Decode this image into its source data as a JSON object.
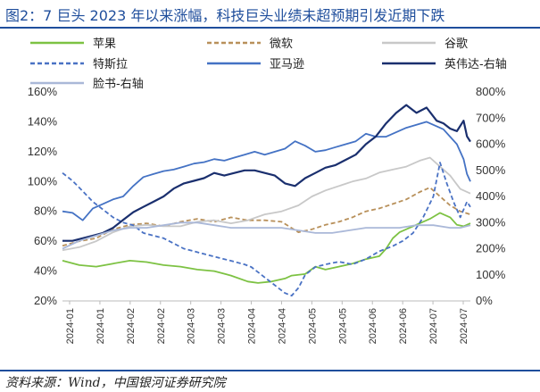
{
  "header": {
    "title": "图2：7 巨头 2023 年以来涨幅，科技巨头业绩未超预期引发近期下跌"
  },
  "footer": {
    "source": "资料来源：Wind，中国银河证券研究院"
  },
  "chart_data": {
    "type": "line",
    "title": "",
    "xlabel": "",
    "ylabel_left": "",
    "ylabel_right": "",
    "ylim_left": [
      0.2,
      1.6
    ],
    "ylim_right": [
      0,
      8
    ],
    "y_ticks_left": [
      "20%",
      "40%",
      "60%",
      "80%",
      "100%",
      "120%",
      "140%",
      "160%"
    ],
    "y_ticks_right": [
      "0%",
      "100%",
      "200%",
      "300%",
      "400%",
      "500%",
      "600%",
      "700%",
      "800%"
    ],
    "x_ticks": [
      "2024-01",
      "2024-01",
      "2024-02",
      "2024-02",
      "2024-03",
      "2024-03",
      "2024-04",
      "2024-04",
      "2024-05",
      "2024-05",
      "2024-06",
      "2024-06",
      "2024-07",
      "2024-07"
    ],
    "legend_position": "top",
    "grid": false,
    "series": [
      {
        "name": "苹果",
        "axis": "left",
        "color": "#7dc243",
        "dash": "solid",
        "points": [
          [
            0,
            0.47
          ],
          [
            5,
            0.44
          ],
          [
            10,
            0.43
          ],
          [
            15,
            0.45
          ],
          [
            20,
            0.47
          ],
          [
            25,
            0.46
          ],
          [
            30,
            0.44
          ],
          [
            35,
            0.43
          ],
          [
            40,
            0.41
          ],
          [
            45,
            0.4
          ],
          [
            50,
            0.37
          ],
          [
            55,
            0.33
          ],
          [
            58,
            0.32
          ],
          [
            62,
            0.33
          ],
          [
            66,
            0.35
          ],
          [
            68,
            0.37
          ],
          [
            72,
            0.38
          ],
          [
            75,
            0.43
          ],
          [
            78,
            0.41
          ],
          [
            82,
            0.43
          ],
          [
            86,
            0.45
          ],
          [
            90,
            0.48
          ],
          [
            94,
            0.5
          ],
          [
            96,
            0.55
          ],
          [
            98,
            0.62
          ],
          [
            100,
            0.66
          ],
          [
            103,
            0.69
          ],
          [
            106,
            0.72
          ],
          [
            109,
            0.75
          ],
          [
            112,
            0.79
          ],
          [
            115,
            0.76
          ],
          [
            117,
            0.71
          ],
          [
            119,
            0.7
          ],
          [
            121,
            0.72
          ]
        ]
      },
      {
        "name": "微软",
        "axis": "left",
        "color": "#b8905a",
        "dash": "dash",
        "points": [
          [
            0,
            0.57
          ],
          [
            5,
            0.6
          ],
          [
            10,
            0.62
          ],
          [
            15,
            0.68
          ],
          [
            20,
            0.71
          ],
          [
            25,
            0.72
          ],
          [
            30,
            0.7
          ],
          [
            35,
            0.73
          ],
          [
            40,
            0.75
          ],
          [
            45,
            0.73
          ],
          [
            50,
            0.76
          ],
          [
            55,
            0.74
          ],
          [
            60,
            0.74
          ],
          [
            65,
            0.73
          ],
          [
            70,
            0.66
          ],
          [
            74,
            0.68
          ],
          [
            78,
            0.71
          ],
          [
            82,
            0.73
          ],
          [
            86,
            0.76
          ],
          [
            90,
            0.8
          ],
          [
            94,
            0.82
          ],
          [
            98,
            0.85
          ],
          [
            102,
            0.88
          ],
          [
            106,
            0.93
          ],
          [
            109,
            0.96
          ],
          [
            112,
            0.9
          ],
          [
            115,
            0.84
          ],
          [
            118,
            0.8
          ],
          [
            121,
            0.78
          ]
        ]
      },
      {
        "name": "谷歌",
        "axis": "left",
        "color": "#c8c8c8",
        "dash": "solid",
        "points": [
          [
            0,
            0.54
          ],
          [
            5,
            0.56
          ],
          [
            10,
            0.6
          ],
          [
            15,
            0.66
          ],
          [
            20,
            0.7
          ],
          [
            25,
            0.71
          ],
          [
            30,
            0.7
          ],
          [
            35,
            0.7
          ],
          [
            40,
            0.73
          ],
          [
            45,
            0.74
          ],
          [
            50,
            0.72
          ],
          [
            55,
            0.74
          ],
          [
            60,
            0.78
          ],
          [
            65,
            0.8
          ],
          [
            70,
            0.84
          ],
          [
            74,
            0.9
          ],
          [
            78,
            0.94
          ],
          [
            82,
            0.97
          ],
          [
            86,
            1.0
          ],
          [
            90,
            1.02
          ],
          [
            94,
            1.06
          ],
          [
            98,
            1.08
          ],
          [
            102,
            1.1
          ],
          [
            106,
            1.14
          ],
          [
            109,
            1.16
          ],
          [
            112,
            1.1
          ],
          [
            115,
            1.04
          ],
          [
            118,
            0.95
          ],
          [
            121,
            0.92
          ]
        ]
      },
      {
        "name": "特斯拉",
        "axis": "right",
        "color": "#4a72c4",
        "dash": "dash",
        "points": [
          [
            0,
            4.9
          ],
          [
            3,
            4.6
          ],
          [
            6,
            4.2
          ],
          [
            9,
            3.8
          ],
          [
            12,
            3.5
          ],
          [
            15,
            3.2
          ],
          [
            18,
            3.0
          ],
          [
            21,
            2.9
          ],
          [
            24,
            2.6
          ],
          [
            27,
            2.5
          ],
          [
            30,
            2.4
          ],
          [
            33,
            2.2
          ],
          [
            36,
            2.0
          ],
          [
            39,
            1.9
          ],
          [
            42,
            1.8
          ],
          [
            45,
            1.7
          ],
          [
            48,
            1.6
          ],
          [
            51,
            1.5
          ],
          [
            54,
            1.4
          ],
          [
            56,
            1.3
          ],
          [
            58,
            1.1
          ],
          [
            60,
            0.9
          ],
          [
            62,
            0.7
          ],
          [
            64,
            0.5
          ],
          [
            66,
            0.3
          ],
          [
            68,
            0.2
          ],
          [
            70,
            0.5
          ],
          [
            72,
            1.0
          ],
          [
            75,
            1.3
          ],
          [
            78,
            1.4
          ],
          [
            82,
            1.5
          ],
          [
            86,
            1.4
          ],
          [
            90,
            1.6
          ],
          [
            94,
            1.9
          ],
          [
            98,
            2.1
          ],
          [
            101,
            2.3
          ],
          [
            104,
            2.6
          ],
          [
            107,
            3.2
          ],
          [
            110,
            4.0
          ],
          [
            112,
            5.3
          ],
          [
            114,
            4.5
          ],
          [
            116,
            3.8
          ],
          [
            118,
            3.2
          ],
          [
            120,
            3.8
          ],
          [
            121,
            3.6
          ]
        ]
      },
      {
        "name": "亚马逊",
        "axis": "left",
        "color": "#4472c4",
        "dash": "solid",
        "points": [
          [
            0,
            0.8
          ],
          [
            3,
            0.79
          ],
          [
            6,
            0.74
          ],
          [
            9,
            0.82
          ],
          [
            12,
            0.85
          ],
          [
            15,
            0.88
          ],
          [
            18,
            0.9
          ],
          [
            21,
            0.97
          ],
          [
            24,
            1.03
          ],
          [
            27,
            1.05
          ],
          [
            30,
            1.07
          ],
          [
            33,
            1.08
          ],
          [
            36,
            1.1
          ],
          [
            39,
            1.12
          ],
          [
            42,
            1.13
          ],
          [
            45,
            1.15
          ],
          [
            48,
            1.14
          ],
          [
            51,
            1.16
          ],
          [
            54,
            1.18
          ],
          [
            57,
            1.2
          ],
          [
            60,
            1.18
          ],
          [
            63,
            1.2
          ],
          [
            66,
            1.22
          ],
          [
            69,
            1.27
          ],
          [
            72,
            1.24
          ],
          [
            75,
            1.2
          ],
          [
            78,
            1.21
          ],
          [
            81,
            1.23
          ],
          [
            84,
            1.25
          ],
          [
            87,
            1.27
          ],
          [
            90,
            1.32
          ],
          [
            93,
            1.3
          ],
          [
            96,
            1.3
          ],
          [
            99,
            1.33
          ],
          [
            102,
            1.36
          ],
          [
            105,
            1.38
          ],
          [
            108,
            1.4
          ],
          [
            111,
            1.37
          ],
          [
            113,
            1.35
          ],
          [
            115,
            1.3
          ],
          [
            117,
            1.25
          ],
          [
            119,
            1.15
          ],
          [
            120,
            1.05
          ],
          [
            121,
            1.0
          ]
        ]
      },
      {
        "name": "英伟达-右轴",
        "axis": "right",
        "color": "#1a2f6e",
        "dash": "solid",
        "points": [
          [
            0,
            2.3
          ],
          [
            3,
            2.3
          ],
          [
            6,
            2.4
          ],
          [
            9,
            2.5
          ],
          [
            12,
            2.6
          ],
          [
            15,
            2.8
          ],
          [
            18,
            3.1
          ],
          [
            21,
            3.4
          ],
          [
            24,
            3.6
          ],
          [
            27,
            3.8
          ],
          [
            30,
            4.0
          ],
          [
            33,
            4.3
          ],
          [
            36,
            4.5
          ],
          [
            39,
            4.6
          ],
          [
            42,
            4.7
          ],
          [
            45,
            4.9
          ],
          [
            48,
            4.8
          ],
          [
            51,
            4.9
          ],
          [
            54,
            5.0
          ],
          [
            57,
            5.0
          ],
          [
            60,
            4.9
          ],
          [
            63,
            4.8
          ],
          [
            66,
            4.5
          ],
          [
            69,
            4.4
          ],
          [
            72,
            4.7
          ],
          [
            75,
            4.9
          ],
          [
            78,
            5.1
          ],
          [
            81,
            5.2
          ],
          [
            84,
            5.4
          ],
          [
            87,
            5.6
          ],
          [
            90,
            6.0
          ],
          [
            93,
            6.3
          ],
          [
            96,
            6.8
          ],
          [
            99,
            7.2
          ],
          [
            102,
            7.5
          ],
          [
            105,
            7.2
          ],
          [
            108,
            7.4
          ],
          [
            111,
            6.9
          ],
          [
            113,
            6.8
          ],
          [
            115,
            6.6
          ],
          [
            117,
            6.5
          ],
          [
            119,
            6.9
          ],
          [
            120,
            6.3
          ],
          [
            121,
            6.1
          ]
        ]
      },
      {
        "name": "脸书-右轴",
        "axis": "right",
        "color": "#aab8d8",
        "dash": "solid",
        "points": [
          [
            0,
            2.0
          ],
          [
            5,
            2.3
          ],
          [
            10,
            2.5
          ],
          [
            15,
            2.7
          ],
          [
            20,
            2.8
          ],
          [
            25,
            2.8
          ],
          [
            30,
            2.9
          ],
          [
            35,
            3.0
          ],
          [
            40,
            3.0
          ],
          [
            45,
            2.9
          ],
          [
            50,
            2.8
          ],
          [
            55,
            2.8
          ],
          [
            60,
            2.8
          ],
          [
            65,
            2.8
          ],
          [
            70,
            2.7
          ],
          [
            75,
            2.6
          ],
          [
            80,
            2.6
          ],
          [
            85,
            2.7
          ],
          [
            90,
            2.8
          ],
          [
            95,
            2.8
          ],
          [
            100,
            2.8
          ],
          [
            105,
            2.9
          ],
          [
            110,
            2.9
          ],
          [
            115,
            2.8
          ],
          [
            118,
            2.8
          ],
          [
            121,
            2.9
          ]
        ]
      }
    ]
  }
}
